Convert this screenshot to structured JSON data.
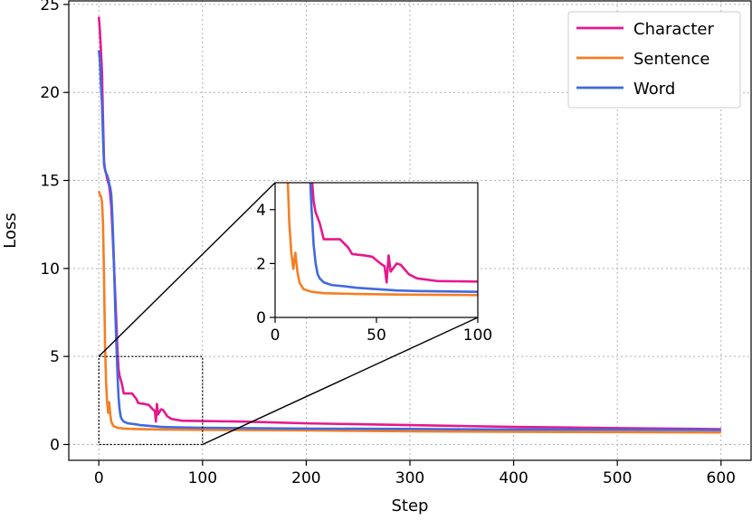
{
  "chart_data": {
    "type": "line",
    "xlabel": "Step",
    "ylabel": "Loss",
    "xlim": [
      -29,
      629
    ],
    "ylim": [
      -0.9,
      25.2
    ],
    "xticks": [
      0,
      100,
      200,
      300,
      400,
      500,
      600
    ],
    "yticks": [
      0,
      5,
      10,
      15,
      20,
      25
    ],
    "grid": true,
    "legend_position": "top-right",
    "series": [
      {
        "name": "Character",
        "color": "#e6188e",
        "points": [
          [
            0,
            24.3
          ],
          [
            1,
            23.5
          ],
          [
            2,
            22.4
          ],
          [
            3,
            21.2
          ],
          [
            4,
            18.5
          ],
          [
            5,
            16.1
          ],
          [
            6,
            15.6
          ],
          [
            7,
            15.4
          ],
          [
            8,
            15.1
          ],
          [
            9,
            14.9
          ],
          [
            10,
            14.7
          ],
          [
            11,
            14.2
          ],
          [
            12,
            13.5
          ],
          [
            13,
            12.3
          ],
          [
            14,
            11.0
          ],
          [
            15,
            9.6
          ],
          [
            16,
            8.2
          ],
          [
            17,
            6.8
          ],
          [
            18,
            5.3
          ],
          [
            19,
            4.3
          ],
          [
            20,
            3.9
          ],
          [
            22,
            3.5
          ],
          [
            24,
            2.9
          ],
          [
            32,
            2.9
          ],
          [
            36,
            2.6
          ],
          [
            38,
            2.35
          ],
          [
            44,
            2.3
          ],
          [
            48,
            2.25
          ],
          [
            52,
            2.0
          ],
          [
            54,
            1.9
          ],
          [
            55,
            1.3
          ],
          [
            56,
            2.3
          ],
          [
            57,
            1.7
          ],
          [
            58,
            1.8
          ],
          [
            60,
            2.0
          ],
          [
            62,
            1.95
          ],
          [
            66,
            1.6
          ],
          [
            70,
            1.45
          ],
          [
            80,
            1.35
          ],
          [
            100,
            1.33
          ],
          [
            140,
            1.3
          ],
          [
            200,
            1.2
          ],
          [
            300,
            1.1
          ],
          [
            400,
            1.0
          ],
          [
            500,
            0.93
          ],
          [
            600,
            0.87
          ]
        ]
      },
      {
        "name": "Sentence",
        "color": "#f47f24",
        "points": [
          [
            0,
            14.4
          ],
          [
            1,
            14.2
          ],
          [
            2,
            14.1
          ],
          [
            3,
            13.8
          ],
          [
            4,
            12.6
          ],
          [
            5,
            9.5
          ],
          [
            6,
            5.6
          ],
          [
            7,
            3.5
          ],
          [
            8,
            2.4
          ],
          [
            9,
            1.8
          ],
          [
            10,
            2.4
          ],
          [
            11,
            1.7
          ],
          [
            12,
            1.3
          ],
          [
            14,
            1.05
          ],
          [
            18,
            0.95
          ],
          [
            24,
            0.9
          ],
          [
            40,
            0.87
          ],
          [
            60,
            0.85
          ],
          [
            100,
            0.83
          ],
          [
            200,
            0.8
          ],
          [
            300,
            0.75
          ],
          [
            400,
            0.72
          ],
          [
            500,
            0.7
          ],
          [
            600,
            0.68
          ]
        ]
      },
      {
        "name": "Word",
        "color": "#4169e1",
        "points": [
          [
            0,
            22.4
          ],
          [
            1,
            21.8
          ],
          [
            2,
            20.4
          ],
          [
            3,
            19.4
          ],
          [
            4,
            17.5
          ],
          [
            5,
            15.9
          ],
          [
            6,
            15.6
          ],
          [
            7,
            15.4
          ],
          [
            8,
            15.3
          ],
          [
            9,
            15.1
          ],
          [
            10,
            14.8
          ],
          [
            11,
            14.6
          ],
          [
            12,
            14.2
          ],
          [
            13,
            13.0
          ],
          [
            14,
            11.4
          ],
          [
            15,
            9.4
          ],
          [
            16,
            7.3
          ],
          [
            17,
            5.6
          ],
          [
            18,
            4.0
          ],
          [
            19,
            2.7
          ],
          [
            20,
            2.0
          ],
          [
            21,
            1.6
          ],
          [
            22,
            1.45
          ],
          [
            24,
            1.3
          ],
          [
            28,
            1.2
          ],
          [
            35,
            1.15
          ],
          [
            40,
            1.1
          ],
          [
            50,
            1.05
          ],
          [
            60,
            1.0
          ],
          [
            70,
            0.98
          ],
          [
            100,
            0.95
          ],
          [
            200,
            0.9
          ],
          [
            300,
            0.88
          ],
          [
            400,
            0.85
          ],
          [
            500,
            0.84
          ],
          [
            600,
            0.82
          ]
        ]
      }
    ],
    "inset": {
      "xlim": [
        0,
        100
      ],
      "ylim": [
        0,
        5
      ],
      "xticks": [
        0,
        50,
        100
      ],
      "yticks": [
        0,
        2,
        4
      ]
    }
  }
}
